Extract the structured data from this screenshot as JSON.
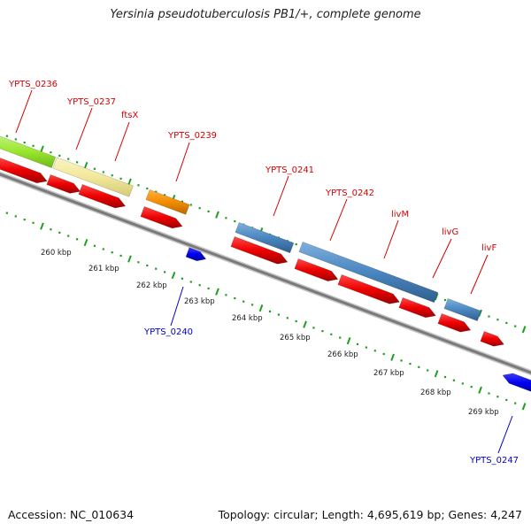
{
  "title": "Yersinia pseudotuberculosis PB1/+, complete genome",
  "footer": {
    "accession": "Accession: NC_010634",
    "summary": "Topology: circular; Length: 4,695,619 bp; Genes: 4,247"
  },
  "colors": {
    "backbone": "#808080",
    "cds_forward": "#ff0000",
    "cds_reverse": "#0000ff",
    "feature_blue": "#4a86c0",
    "feature_orange": "#f28c00",
    "feature_khaki": "#f2e89a",
    "feature_green": "#9ae62e",
    "ticks": "#1e9f1e",
    "label_forward": "#d40000",
    "label_reverse": "#0000cc"
  },
  "kbp_labels": [
    "260 kbp",
    "261 kbp",
    "262 kbp",
    "263 kbp",
    "264 kbp",
    "265 kbp",
    "266 kbp",
    "267 kbp",
    "268 kbp",
    "269 kbp"
  ],
  "gene_labels_forward": [
    "YPTS_0236",
    "YPTS_0237",
    "ftsX",
    "YPTS_0239",
    "YPTS_0241",
    "YPTS_0242",
    "livM",
    "livG",
    "livF"
  ],
  "gene_labels_reverse": [
    "YPTS_0240",
    "YPTS_0247"
  ]
}
